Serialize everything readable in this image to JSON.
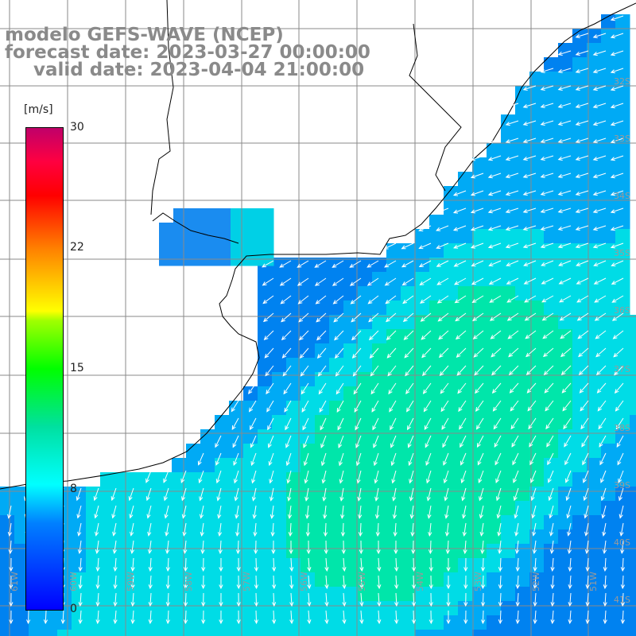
{
  "title": {
    "line1": "modelo GEFS-WAVE (NCEP)",
    "line2": "forecast date: 2023-03-27 00:00:00",
    "line3": "valid date: 2023-04-04 21:00:00"
  },
  "colorbar": {
    "unit": "[m/s]",
    "ticks": [
      "30",
      "22",
      "15",
      "8",
      "0"
    ],
    "min": 0,
    "max": 30
  },
  "axis_labels": {
    "longitudes": [
      "61W",
      "60W",
      "59W",
      "58W",
      "57W",
      "56W",
      "55W",
      "54W",
      "53W",
      "52W",
      "51W"
    ],
    "latitudes": [
      "32S",
      "33S",
      "34S",
      "35S",
      "36S",
      "37S",
      "38S",
      "39S",
      "40S",
      "41S"
    ]
  },
  "wind_field": {
    "variable": "wind speed and direction",
    "units": "m/s",
    "dominant_direction": "from east / northeast (flow toward southwest)",
    "speed_range_estimate": [
      5,
      12
    ]
  }
}
